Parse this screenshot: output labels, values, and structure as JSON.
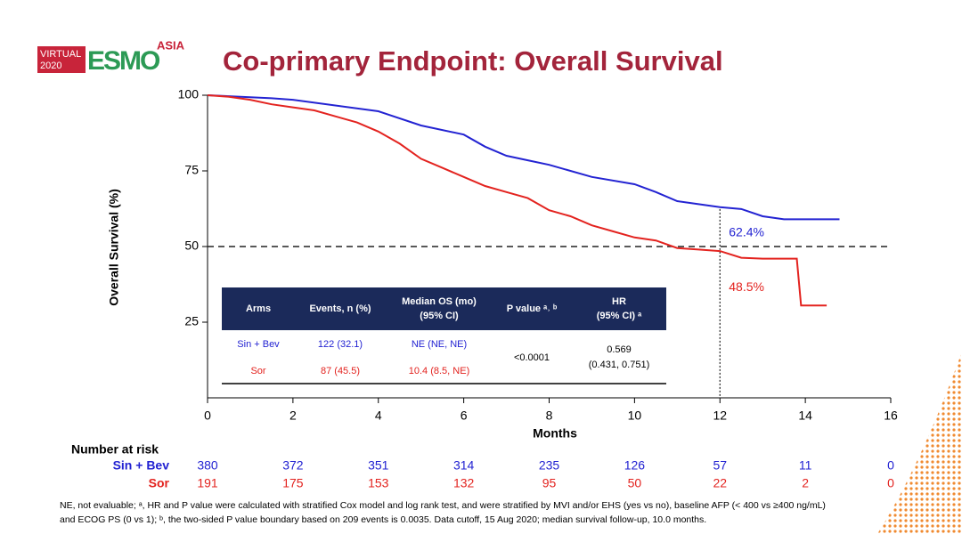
{
  "logo": {
    "line1": "VIRTUAL",
    "line2": "2020",
    "brand": "ESMO",
    "region": "ASIA"
  },
  "chart_data": {
    "type": "line",
    "title": "Co-primary Endpoint: Overall Survival",
    "y_label": "Overall Survival (%)",
    "x_label": "Months",
    "xlim": [
      0,
      16
    ],
    "xticks": [
      0,
      2,
      4,
      6,
      8,
      10,
      12,
      14,
      16
    ],
    "ylim": [
      0,
      100
    ],
    "yticks": [
      25,
      50,
      75,
      100
    ],
    "series": [
      {
        "name": "Sin + Bev",
        "color": "#2323d2",
        "x": [
          0,
          1.5,
          2,
          4,
          5,
          6,
          6.5,
          7,
          7.5,
          8,
          9,
          10,
          10.5,
          11,
          11.5,
          12,
          12.5,
          13,
          13.5,
          14.8
        ],
        "values": [
          100,
          99,
          98.5,
          94.7,
          90,
          87,
          83,
          80,
          78.5,
          77,
          73,
          70.6,
          68,
          65,
          64,
          63,
          62.4,
          60,
          59,
          59
        ]
      },
      {
        "name": "Sor",
        "color": "#e3231f",
        "x": [
          0,
          0.5,
          1,
          1.5,
          2,
          2.5,
          3,
          3.5,
          4,
          4.5,
          5,
          5.5,
          6,
          6.5,
          7,
          7.5,
          8,
          8.5,
          9,
          9.5,
          10,
          10.5,
          11,
          11.5,
          12,
          12.5,
          13,
          13.8,
          13.9,
          14.5
        ],
        "values": [
          100,
          99.5,
          98.5,
          97,
          96,
          95,
          93,
          91,
          88,
          84,
          79,
          76,
          73,
          70,
          68,
          66,
          62,
          60,
          57,
          55,
          53,
          52,
          49.5,
          49,
          48.5,
          46.3,
          46,
          46,
          30.5,
          30.5
        ]
      }
    ],
    "reference_lines": {
      "h": 50,
      "v": 12
    },
    "annotations": [
      {
        "label": "62.4%",
        "value": 62.4
      },
      {
        "label": "48.5%",
        "value": 48.5
      }
    ],
    "table": {
      "header": [
        [
          "Arms"
        ],
        [
          "Events, n (%)"
        ],
        [
          "Median OS (mo)",
          "(95% CI)"
        ],
        [
          "P value ᵃ˒ ᵇ"
        ],
        [
          "HR",
          "(95% CI) ᵃ"
        ]
      ],
      "rows": [
        [
          "Sin + Bev",
          "122   (32.1)",
          "NE (NE, NE)"
        ],
        [
          "Sor",
          "87 (45.5)",
          "10.4 (8.5, NE)"
        ]
      ],
      "p_value": "<0.0001",
      "hr": [
        "0.569",
        "(0.431, 0.751)"
      ]
    },
    "risk_table": {
      "title": "Number at risk",
      "rows": [
        {
          "name": "Sin + Bev",
          "values": [
            380,
            372,
            351,
            314,
            235,
            126,
            57,
            11,
            0
          ]
        },
        {
          "name": "Sor",
          "values": [
            191,
            175,
            153,
            132,
            95,
            50,
            22,
            2,
            0
          ]
        }
      ]
    }
  },
  "footnote": [
    "NE, not evaluable; ᵃ, HR and P value were calculated with stratified Cox model and log rank test, and were stratified by MVI and/or EHS (yes vs no), baseline AFP (< 400 vs ≥400 ng/mL)",
    "and ECOG PS (0 vs 1); ᵇ, the two-sided P value boundary based on 209 events is 0.0035. Data cutoff, 15 Aug 2020; median survival follow-up, 10.0 months."
  ]
}
